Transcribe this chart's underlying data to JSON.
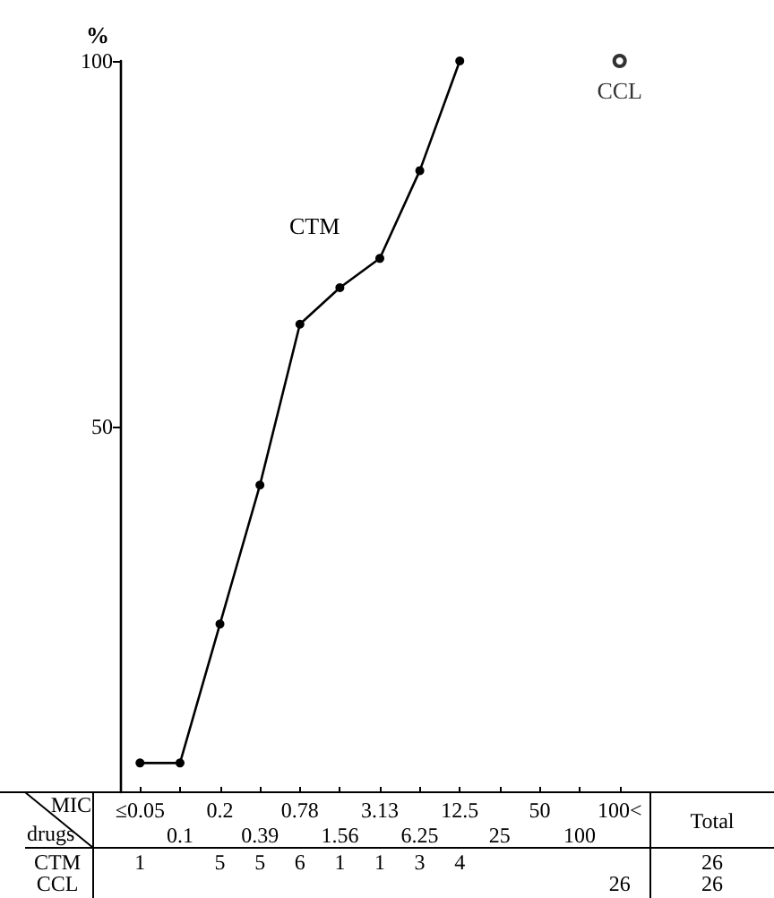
{
  "chart_data": {
    "type": "line",
    "ylabel": "%",
    "xlabel": "MIC",
    "categories": [
      "≤0.05",
      "0.1",
      "0.2",
      "0.39",
      "0.78",
      "1.56",
      "3.13",
      "6.25",
      "12.5",
      "25",
      "50",
      "100",
      "100<"
    ],
    "series": [
      {
        "name": "CTM",
        "color": "#000000",
        "marker": "circle",
        "values": [
          4,
          4,
          23,
          42,
          64,
          69,
          73,
          85,
          100,
          null,
          null,
          null,
          null
        ]
      },
      {
        "name": "CCL",
        "type": "scatter",
        "color": "#000000",
        "marker": "circle",
        "values": [
          null,
          null,
          null,
          null,
          null,
          null,
          null,
          null,
          null,
          null,
          null,
          null,
          100
        ]
      }
    ],
    "annotations": [
      "drugs",
      "Total",
      "1",
      "5",
      "5",
      "6",
      "1",
      "1",
      "3",
      "4",
      "26"
    ],
    "totals": [
      "26",
      "26"
    ],
    "ylim": [
      0,
      100
    ],
    "yticks": [
      50,
      100
    ],
    "grid": false,
    "legend": false
  }
}
